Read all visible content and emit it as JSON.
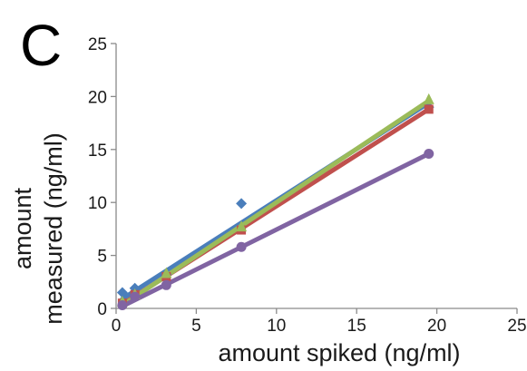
{
  "chart_data": {
    "type": "scatter",
    "panel_label": "C",
    "title": "",
    "xlabel": "amount spiked (ng/ml)",
    "ylabel_lines": [
      "amount",
      "measured (ng/ml)"
    ],
    "xlim": [
      0,
      25
    ],
    "ylim": [
      0,
      25
    ],
    "xticks": [
      0,
      5,
      10,
      15,
      20,
      25
    ],
    "yticks": [
      0,
      5,
      10,
      15,
      20,
      25
    ],
    "grid": false,
    "legend": "none",
    "series": [
      {
        "marker": "diamond",
        "color": "#4a7ebb",
        "x": [
          0.39,
          1.17,
          3.13,
          7.81,
          19.5
        ],
        "y": [
          1.5,
          1.9,
          3.2,
          9.9,
          19.0
        ],
        "fit": [
          [
            0.39,
            0.9
          ],
          [
            19.5,
            19.4
          ]
        ]
      },
      {
        "marker": "square",
        "color": "#c0504d",
        "x": [
          0.39,
          1.17,
          3.13,
          7.81,
          19.5
        ],
        "y": [
          0.5,
          1.3,
          3.0,
          7.4,
          18.8
        ],
        "fit": [
          [
            0.39,
            0.4
          ],
          [
            19.5,
            18.8
          ]
        ]
      },
      {
        "marker": "triangle",
        "color": "#9bbb59",
        "x": [
          0.39,
          1.17,
          3.13,
          7.81,
          19.5
        ],
        "y": [
          0.6,
          1.3,
          3.3,
          7.7,
          19.7
        ],
        "fit": [
          [
            0.39,
            0.3
          ],
          [
            19.5,
            19.6
          ]
        ]
      },
      {
        "marker": "circle",
        "color": "#8064a2",
        "x": [
          0.39,
          1.17,
          3.13,
          7.81,
          19.5
        ],
        "y": [
          0.3,
          1.1,
          2.2,
          5.8,
          14.6
        ],
        "fit": [
          [
            0.39,
            0.2
          ],
          [
            19.5,
            14.6
          ]
        ]
      }
    ]
  }
}
